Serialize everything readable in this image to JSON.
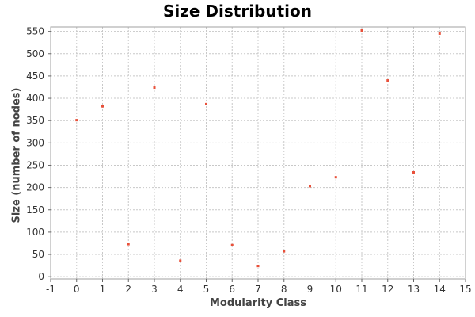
{
  "chart_data": {
    "type": "scatter",
    "title": "Size Distribution",
    "xlabel": "Modularity Class",
    "ylabel": "Size (number of nodes)",
    "xlim": [
      -1,
      15
    ],
    "ylim": [
      -5,
      560
    ],
    "xticks": [
      -1,
      0,
      1,
      2,
      3,
      4,
      5,
      6,
      7,
      8,
      9,
      10,
      11,
      12,
      13,
      14,
      15
    ],
    "yticks": [
      0,
      50,
      100,
      150,
      200,
      250,
      300,
      350,
      400,
      450,
      500,
      550
    ],
    "grid": true,
    "point_color": "#e8503a",
    "series": [
      {
        "x": [
          0,
          1,
          2,
          3,
          4,
          5,
          6,
          7,
          8,
          9,
          10,
          11,
          12,
          13,
          14
        ],
        "y": [
          351,
          382,
          73,
          424,
          36,
          387,
          71,
          24,
          57,
          203,
          223,
          552,
          440,
          234,
          545
        ]
      }
    ]
  }
}
